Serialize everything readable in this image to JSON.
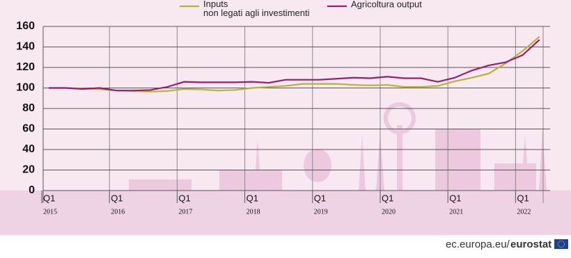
{
  "chart_data": {
    "type": "line",
    "categories": [
      "Q1",
      null,
      null,
      null,
      "Q1",
      null,
      null,
      null,
      "Q1",
      null,
      null,
      null,
      "Q1",
      null,
      null,
      null,
      "Q1",
      null,
      null,
      null,
      "Q1",
      null,
      null,
      null,
      "Q1",
      null,
      null,
      null,
      "Q1",
      null
    ],
    "years": [
      "2015",
      "2016",
      "2017",
      "2018",
      "2019",
      "2020",
      "2021",
      "2022"
    ],
    "series": [
      {
        "name": "Inputs\nnon legati agli investimenti",
        "color": "#b3b62d",
        "values": [
          100,
          100,
          99.5,
          99,
          97.5,
          97,
          96.5,
          97,
          99,
          98.5,
          97.5,
          98,
          100,
          101,
          102,
          104,
          104,
          104,
          103,
          102.5,
          103,
          101,
          101,
          102,
          106.5,
          110,
          114,
          124,
          136,
          150
        ]
      },
      {
        "name": "Agricoltura output",
        "color": "#9b1b6e",
        "values": [
          100,
          100,
          99,
          100,
          97.5,
          97.5,
          98,
          101,
          106,
          105.5,
          105.5,
          105.5,
          106,
          105,
          108,
          108,
          108,
          109,
          110,
          109.5,
          111,
          109.5,
          109.5,
          106,
          110,
          117,
          122,
          125,
          132,
          147
        ]
      }
    ],
    "ylim": [
      0,
      160
    ],
    "yticks": [
      0,
      20,
      40,
      60,
      80,
      100,
      120,
      140,
      160
    ],
    "grid": true
  },
  "footer": {
    "site": "ec.europa.eu/",
    "brand": "eurostat"
  }
}
